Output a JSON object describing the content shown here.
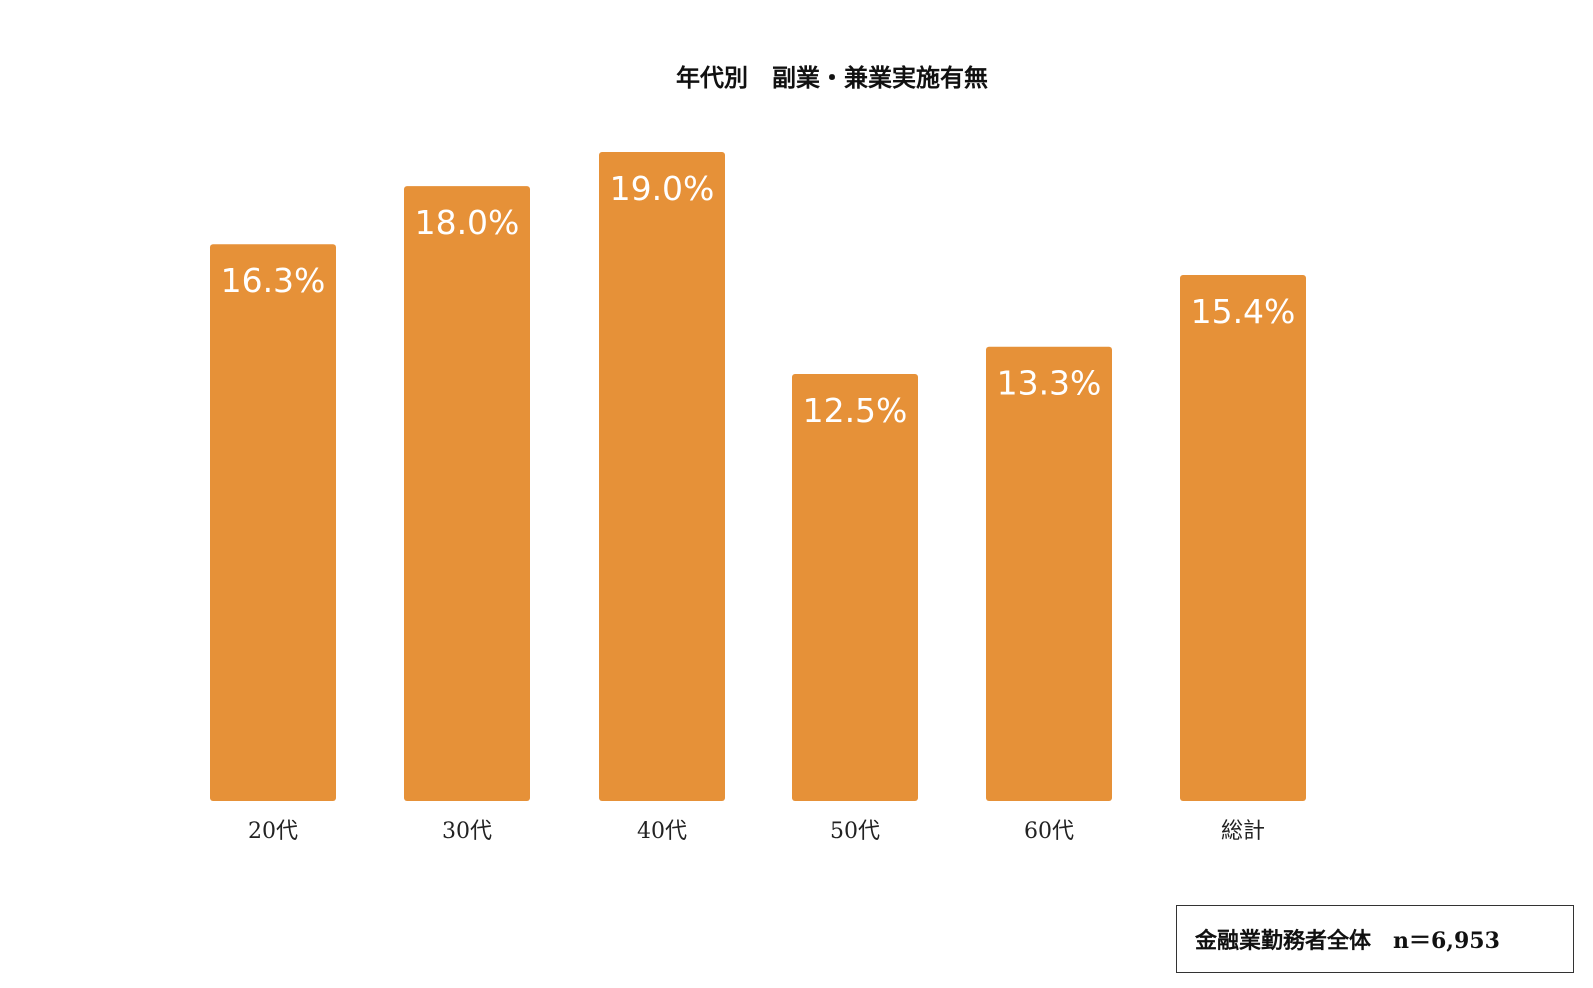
{
  "chart_data": {
    "type": "bar",
    "title": "年代別　副業・兼業実施有無",
    "categories": [
      "20代",
      "30代",
      "40代",
      "50代",
      "60代",
      "総計"
    ],
    "values": [
      16.3,
      18.0,
      19.0,
      12.5,
      13.3,
      15.4
    ],
    "value_labels": [
      "16.3%",
      "18.0%",
      "19.0%",
      "12.5%",
      "13.3%",
      "15.4%"
    ],
    "ylim": [
      0,
      19
    ],
    "grid": false,
    "legend": "none",
    "bar_color": "#E69138"
  },
  "note": {
    "text": "金融業勤務者全体　n＝6,953"
  }
}
